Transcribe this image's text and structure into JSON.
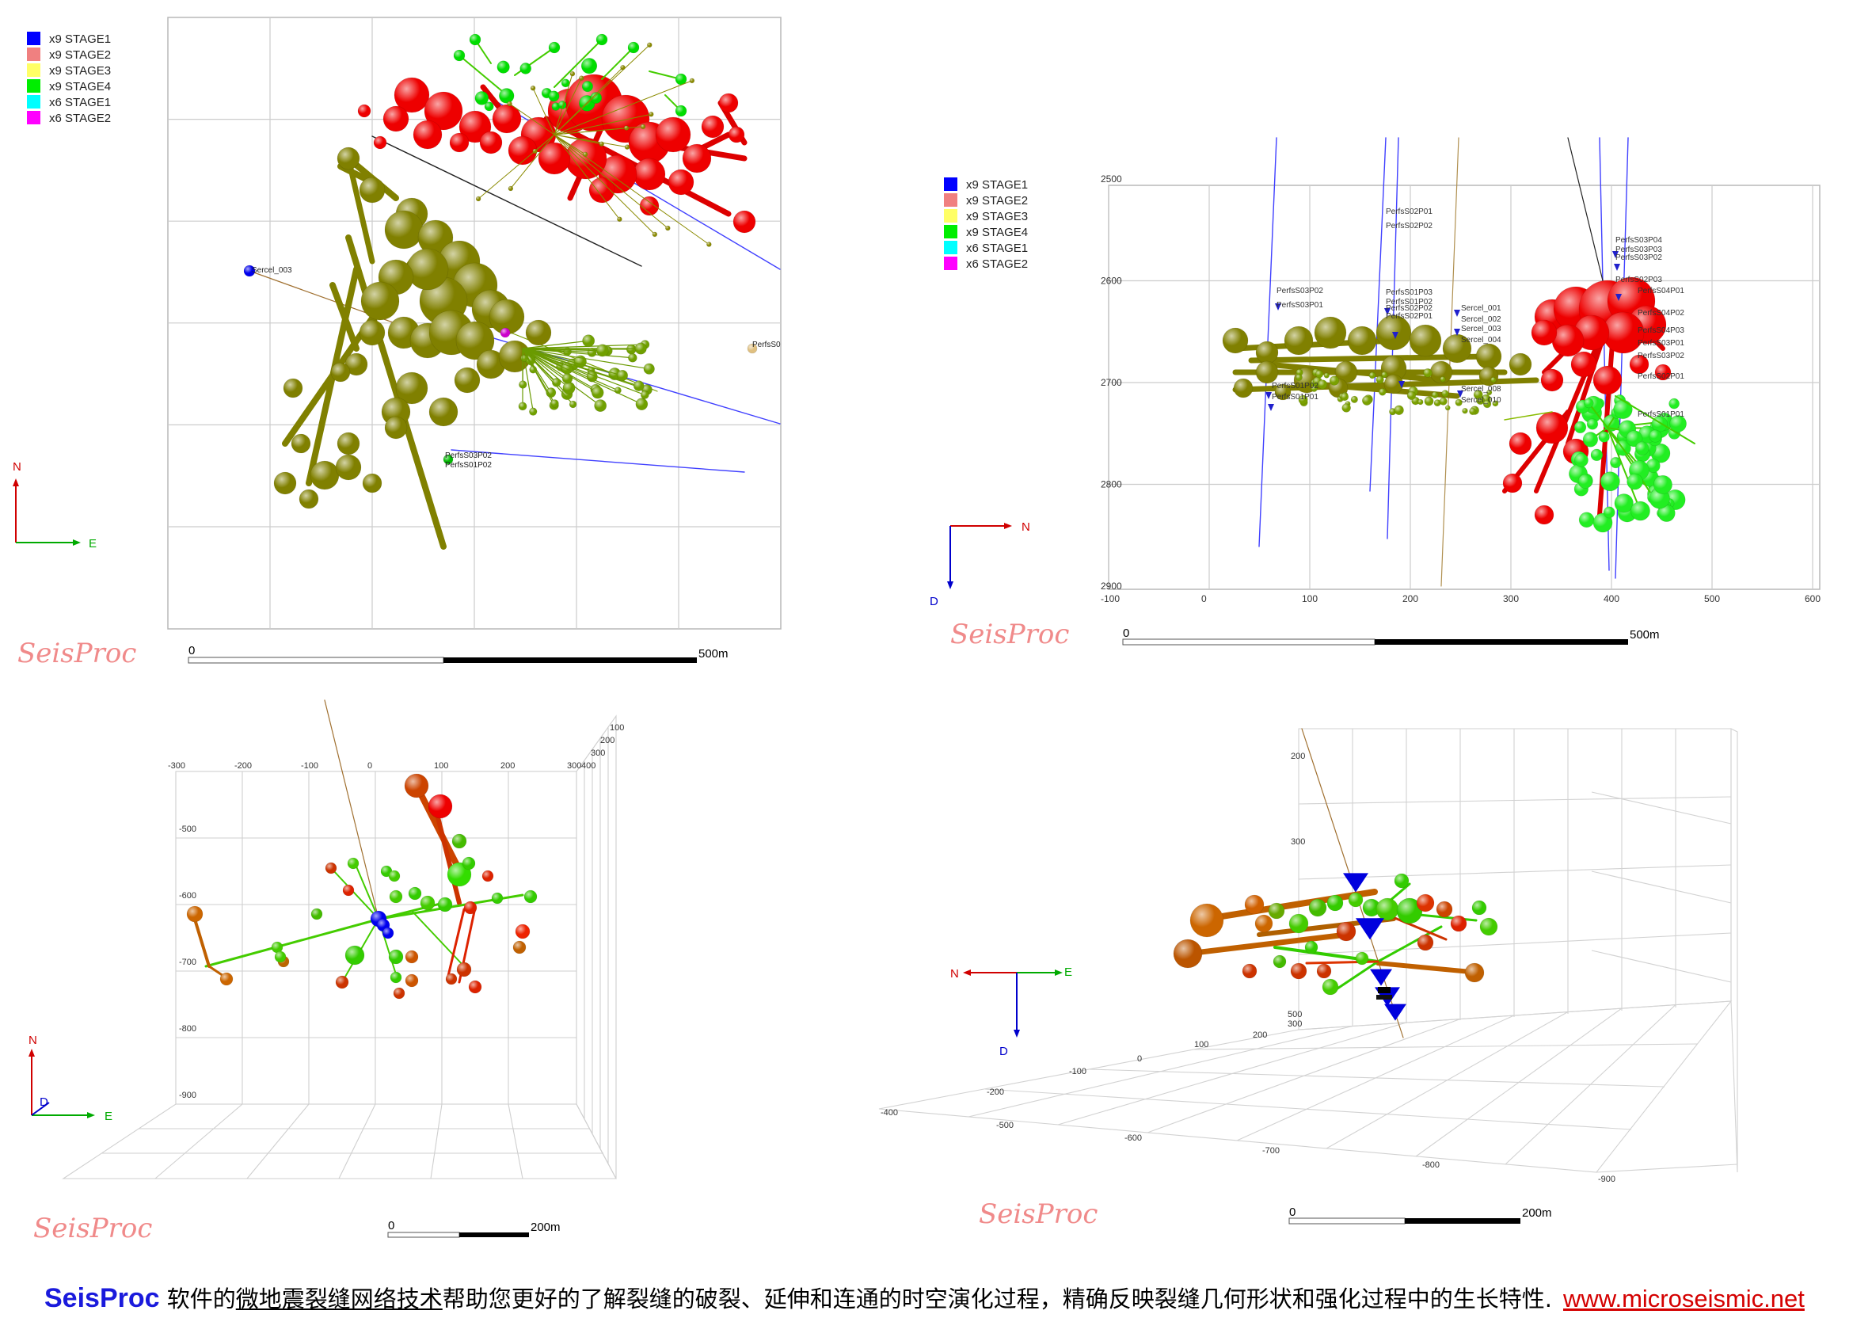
{
  "legend_top_left": [
    {
      "label": "x9 STAGE1",
      "color": "#0000ff"
    },
    {
      "label": "x9 STAGE2",
      "color": "#f08080"
    },
    {
      "label": "x9 STAGE3",
      "color": "#ffff66"
    },
    {
      "label": "x9 STAGE4",
      "color": "#00ee00"
    },
    {
      "label": "x6 STAGE1",
      "color": "#00ffff"
    },
    {
      "label": "x6 STAGE2",
      "color": "#ff00ff"
    }
  ],
  "legend_top_right": [
    {
      "label": "x9 STAGE1",
      "color": "#0000ff"
    },
    {
      "label": "x9 STAGE2",
      "color": "#f08080"
    },
    {
      "label": "x9 STAGE3",
      "color": "#ffff66"
    },
    {
      "label": "x9 STAGE4",
      "color": "#00ee00"
    },
    {
      "label": "x6 STAGE1",
      "color": "#00ffff"
    },
    {
      "label": "x6 STAGE2",
      "color": "#ff00ff"
    }
  ],
  "panels": {
    "plan": {
      "compass": {
        "north": "N",
        "east": "E"
      },
      "scale": {
        "start": "0",
        "end": "500m"
      },
      "watermark": "SeisProc",
      "labels": [
        "Sercel_003",
        "PerfsS03P02",
        "PerfsS01P02",
        "PerfsS0"
      ]
    },
    "section": {
      "compass": {
        "north": "N",
        "down": "D"
      },
      "scale": {
        "start": "0",
        "end": "500m"
      },
      "watermark": "SeisProc",
      "y_ticks": [
        "2500",
        "2600",
        "2700",
        "2800",
        "2900"
      ],
      "x_ticks": [
        "-100",
        "0",
        "100",
        "200",
        "300",
        "400",
        "500",
        "600"
      ],
      "well_labels": [
        "PerfsS02P01",
        "PerfsS02P02",
        "PerfsS03P02",
        "PerfsS03P01",
        "PerfsS01P03",
        "PerfsS01P02",
        "PerfsS02P02",
        "PerfsS02P01",
        "Sercel_001",
        "Sercel_002",
        "Sercel_003",
        "Sercel_004",
        "PerfsS01P02",
        "PerfsS01P01",
        "Sercel_008",
        "Sercel_010",
        "PerfsS03P04",
        "PerfsS03P03",
        "PerfsS03P02",
        "PerfsS02P03",
        "PerfsS04P01",
        "PerfsS04P02",
        "PerfsS04P03",
        "PerfsS03P01",
        "PerfsS03P02",
        "PerfsS02P01",
        "PerfsS01P01"
      ]
    },
    "view3d_left": {
      "compass": {
        "north": "N",
        "down": "D",
        "east": "E"
      },
      "scale": {
        "start": "0",
        "end": "200m"
      },
      "watermark": "SeisProc",
      "x_ticks": [
        "-300",
        "-200",
        "-100",
        "0",
        "100",
        "200",
        "300"
      ],
      "y_ticks": [
        "-500",
        "-600",
        "-700",
        "-800",
        "-900"
      ],
      "z_ticks": [
        "100",
        "200",
        "300",
        "400"
      ]
    },
    "view3d_right": {
      "compass": {
        "north": "N",
        "east": "E",
        "down": "D"
      },
      "scale": {
        "start": "0",
        "end": "200m"
      },
      "watermark": "SeisProc",
      "z_ticks": [
        "200",
        "300",
        "500"
      ],
      "depth_ticks": [
        "300",
        "200",
        "100",
        "0",
        "-100",
        "-200",
        "-400"
      ],
      "x_ticks": [
        "-500",
        "-600",
        "-700",
        "-800",
        "-900"
      ]
    }
  },
  "caption": {
    "brand": "SeisProc",
    "part1": " 软件的",
    "tech": "微地震裂缝网络技术",
    "part2": "帮助您更好的了解裂缝的破裂、延伸和连通的时空演化过程，精确反映裂缝几何形状和强化过程中的生长特性.",
    "url": "www.microseismic.net"
  },
  "chart_data": [
    {
      "type": "scatter",
      "title": "",
      "view": "plan",
      "series": [
        {
          "name": "x9 STAGE2",
          "color": "#ff0000",
          "points": [
            [
              -40,
              410
            ],
            [
              -20,
              395
            ],
            [
              0,
              420
            ],
            [
              20,
              400
            ],
            [
              40,
              380
            ],
            [
              60,
              405
            ],
            [
              80,
              390
            ],
            [
              100,
              370
            ],
            [
              120,
              360
            ],
            [
              140,
              385
            ],
            [
              160,
              350
            ],
            [
              -60,
              400
            ],
            [
              -80,
              415
            ],
            [
              10,
              440
            ],
            [
              50,
              430
            ],
            [
              90,
              420
            ],
            [
              130,
              400
            ],
            [
              170,
              380
            ],
            [
              30,
              360
            ],
            [
              70,
              350
            ]
          ]
        },
        {
          "name": "x9 STAGE4",
          "color": "#00ee00",
          "points": [
            [
              0,
              470
            ],
            [
              20,
              460
            ],
            [
              40,
              450
            ],
            [
              60,
              470
            ],
            [
              80,
              455
            ],
            [
              100,
              440
            ],
            [
              -20,
              450
            ],
            [
              10,
              430
            ]
          ]
        },
        {
          "name": "x9 STAGE3",
          "color": "#8b8b00",
          "points": [
            [
              -120,
              200
            ],
            [
              -100,
              180
            ],
            [
              -80,
              220
            ],
            [
              -60,
              190
            ],
            [
              -40,
              170
            ],
            [
              -20,
              200
            ],
            [
              0,
              160
            ],
            [
              20,
              180
            ],
            [
              -140,
              160
            ],
            [
              -160,
              100
            ],
            [
              -180,
              60
            ],
            [
              -200,
              20
            ],
            [
              -100,
              120
            ],
            [
              -60,
              110
            ],
            [
              -40,
              140
            ],
            [
              -80,
              260
            ],
            [
              -100,
              300
            ],
            [
              -130,
              330
            ],
            [
              -150,
              350
            ]
          ]
        },
        {
          "name": "x9 STAGE1",
          "color": "#0000ff",
          "points": [
            [
              -280,
              240
            ]
          ]
        }
      ]
    },
    {
      "type": "scatter",
      "title": "",
      "view": "section",
      "xlim": [
        -100,
        600
      ],
      "ylim": [
        2900,
        2500
      ],
      "series": [
        {
          "name": "x9 STAGE3",
          "color": "#8b8b00",
          "points": [
            [
              50,
              2660
            ],
            [
              90,
              2670
            ],
            [
              130,
              2660
            ],
            [
              160,
              2650
            ],
            [
              190,
              2650
            ],
            [
              210,
              2660
            ],
            [
              240,
              2670
            ],
            [
              270,
              2680
            ],
            [
              30,
              2700
            ],
            [
              100,
              2690
            ],
            [
              150,
              2680
            ],
            [
              200,
              2685
            ]
          ]
        },
        {
          "name": "x9 STAGE2",
          "color": "#ff0000",
          "points": [
            [
              320,
              2640
            ],
            [
              340,
              2630
            ],
            [
              360,
              2620
            ],
            [
              380,
              2610
            ],
            [
              400,
              2640
            ],
            [
              360,
              2660
            ],
            [
              340,
              2700
            ],
            [
              320,
              2740
            ],
            [
              300,
              2760
            ],
            [
              290,
              2790
            ],
            [
              280,
              2820
            ],
            [
              400,
              2660
            ]
          ]
        },
        {
          "name": "x9 STAGE4",
          "color": "#00ee00",
          "points": [
            [
              380,
              2730
            ],
            [
              400,
              2750
            ],
            [
              420,
              2770
            ],
            [
              440,
              2760
            ],
            [
              390,
              2790
            ],
            [
              410,
              2810
            ],
            [
              430,
              2800
            ],
            [
              400,
              2830
            ],
            [
              420,
              2740
            ]
          ]
        }
      ]
    },
    {
      "type": "scatter",
      "title": "",
      "view": "3d-left",
      "series": [
        {
          "name": "red-orange",
          "color": "#e02000",
          "points": [
            [
              60,
              -520
            ],
            [
              100,
              -540
            ],
            [
              -20,
              -600
            ],
            [
              40,
              -610
            ],
            [
              120,
              -650
            ],
            [
              -40,
              -700
            ],
            [
              80,
              -700
            ],
            [
              140,
              -660
            ]
          ]
        },
        {
          "name": "green",
          "color": "#33cc00",
          "points": [
            [
              20,
              -620
            ],
            [
              100,
              -590
            ],
            [
              -120,
              -660
            ],
            [
              180,
              -620
            ],
            [
              -60,
              -630
            ],
            [
              0,
              -730
            ],
            [
              40,
              -690
            ]
          ]
        }
      ]
    },
    {
      "type": "scatter",
      "title": "",
      "view": "3d-right",
      "series": [
        {
          "name": "orange",
          "color": "#d07000",
          "points": [
            [
              -420,
              250
            ],
            [
              -400,
              270
            ],
            [
              -300,
              260
            ],
            [
              -200,
              250
            ],
            [
              -100,
              270
            ]
          ]
        },
        {
          "name": "green",
          "color": "#33cc00",
          "points": [
            [
              -350,
              230
            ],
            [
              -250,
              245
            ],
            [
              -150,
              235
            ],
            [
              -50,
              255
            ],
            [
              0,
              240
            ]
          ]
        },
        {
          "name": "red",
          "color": "#e02000",
          "points": [
            [
              -320,
              270
            ],
            [
              -220,
              280
            ],
            [
              -120,
              260
            ],
            [
              -20,
              250
            ]
          ]
        }
      ]
    }
  ]
}
